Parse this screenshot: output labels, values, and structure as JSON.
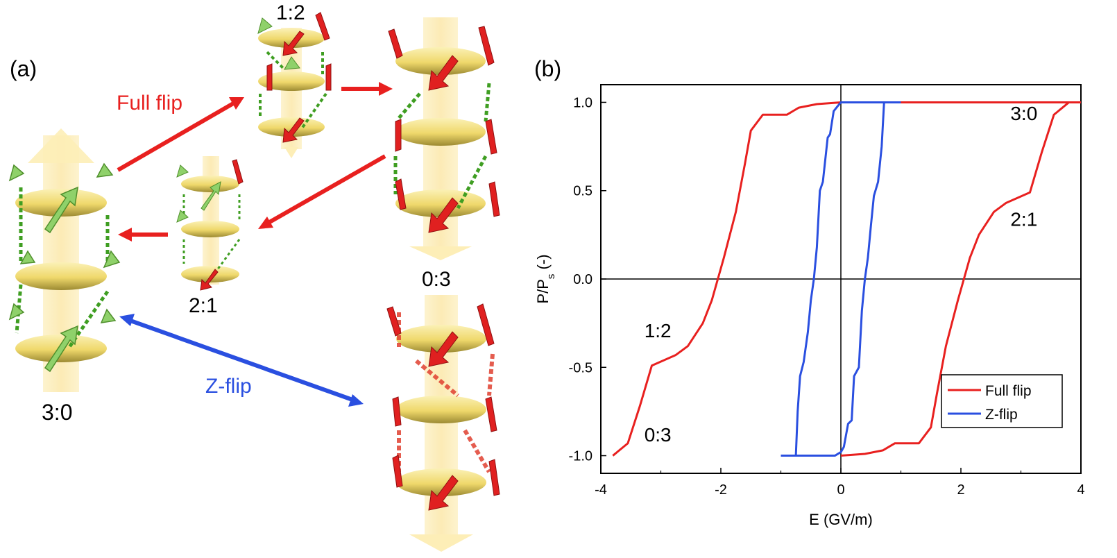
{
  "panel_a": {
    "label": "(a)",
    "arrows": {
      "full_flip": {
        "label": "Full flip",
        "color": "#e8201f"
      },
      "z_flip": {
        "label": "Z-flip",
        "color": "#2a4fe0"
      }
    },
    "states": {
      "s30": "3:0",
      "s12": "1:2",
      "s21": "2:1",
      "s03": "0:3"
    },
    "colors": {
      "disk": "#f2de7c",
      "axis": "#fdeeb7",
      "green_arrow": "#8fd16a",
      "red_arrow": "#e02020",
      "gold_tab": "#c89a1e",
      "green_bond": "#3f9e22",
      "red_bond": "#e04030"
    }
  },
  "panel_b": {
    "label": "(b)"
  },
  "chart_data": {
    "type": "line",
    "xlabel": "E (GV/m)",
    "ylabel": "P/P",
    "ylabel_sub": "s",
    "ylabel_suffix": " (-)",
    "xlim": [
      -4,
      4
    ],
    "ylim": [
      -1.1,
      1.1
    ],
    "xticks": [
      -4,
      -2,
      0,
      2,
      4
    ],
    "yticks": [
      1.0,
      0.5,
      0.0,
      -0.5,
      -1.0
    ],
    "xtick_labels": [
      "-4",
      "-2",
      "0",
      "2",
      "4"
    ],
    "ytick_labels": [
      "1.0",
      "0.5",
      "0.0",
      "-0.5",
      "-1.0"
    ],
    "legend_position": "lower-right",
    "series": [
      {
        "name": "Full flip",
        "color": "#e8201f",
        "x": [
          -3.8,
          -3.55,
          -3.35,
          -3.15,
          -2.75,
          -2.55,
          -2.3,
          -2.15,
          -2.05,
          -1.95,
          -1.75,
          -1.6,
          -1.5,
          -1.3,
          -0.9,
          -0.7,
          -0.4,
          0.0,
          0.4,
          0.7,
          0.9,
          1.3,
          1.5,
          1.6,
          1.75,
          1.95,
          2.05,
          2.15,
          2.3,
          2.55,
          2.75,
          3.15,
          3.35,
          3.55,
          3.8,
          4.0
        ],
        "y": [
          -1.0,
          -0.93,
          -0.72,
          -0.49,
          -0.43,
          -0.38,
          -0.25,
          -0.12,
          0.0,
          0.12,
          0.38,
          0.65,
          0.84,
          0.93,
          0.93,
          0.97,
          0.99,
          1.0,
          1.0,
          1.0,
          1.0,
          1.0,
          1.0,
          1.0,
          1.0,
          1.0,
          1.0,
          1.0,
          1.0,
          1.0,
          1.0,
          1.0,
          1.0,
          1.0,
          1.0,
          1.0
        ],
        "y_return": [
          1.0,
          0.93,
          0.72,
          0.49,
          0.43,
          0.38,
          0.25,
          0.12,
          0.0,
          -0.12,
          -0.38,
          -0.65,
          -0.84,
          -0.93,
          -0.93,
          -0.97,
          -0.99,
          -1.0
        ],
        "x_return": [
          3.8,
          3.55,
          3.35,
          3.15,
          2.75,
          2.55,
          2.3,
          2.15,
          2.05,
          1.95,
          1.75,
          1.6,
          1.5,
          1.3,
          0.9,
          0.7,
          0.4,
          0.0
        ]
      },
      {
        "name": "Z-flip",
        "color": "#2a4fe0",
        "x": [
          -1.0,
          -0.75,
          -0.72,
          -0.68,
          -0.62,
          -0.55,
          -0.5,
          -0.45,
          -0.4,
          -0.35,
          -0.3,
          -0.22,
          -0.18,
          -0.12,
          -0.05,
          0.0,
          0.1,
          0.3,
          0.5,
          0.72,
          1.0
        ],
        "y": [
          -1.0,
          -1.0,
          -0.75,
          -0.55,
          -0.47,
          -0.3,
          -0.12,
          0.0,
          0.18,
          0.5,
          0.55,
          0.8,
          0.82,
          0.95,
          0.98,
          1.0,
          1.0,
          1.0,
          1.0,
          1.0,
          1.0
        ],
        "x_return": [
          0.72,
          0.68,
          0.62,
          0.55,
          0.5,
          0.45,
          0.4,
          0.35,
          0.3,
          0.22,
          0.18,
          0.12,
          0.05,
          0.0,
          -0.1,
          -0.3,
          -0.5,
          -0.72,
          -1.0
        ],
        "y_return": [
          1.0,
          0.75,
          0.55,
          0.47,
          0.3,
          0.12,
          0.0,
          -0.18,
          -0.5,
          -0.55,
          -0.8,
          -0.82,
          -0.95,
          -0.98,
          -1.0,
          -1.0,
          -1.0,
          -1.0,
          -1.0
        ]
      }
    ],
    "annotations": [
      {
        "text": "3:0",
        "x": 3.05,
        "y": 0.9
      },
      {
        "text": "2:1",
        "x": 3.05,
        "y": 0.3
      },
      {
        "text": "1:2",
        "x": -3.05,
        "y": -0.33
      },
      {
        "text": "0:3",
        "x": -3.05,
        "y": -0.92
      }
    ]
  }
}
